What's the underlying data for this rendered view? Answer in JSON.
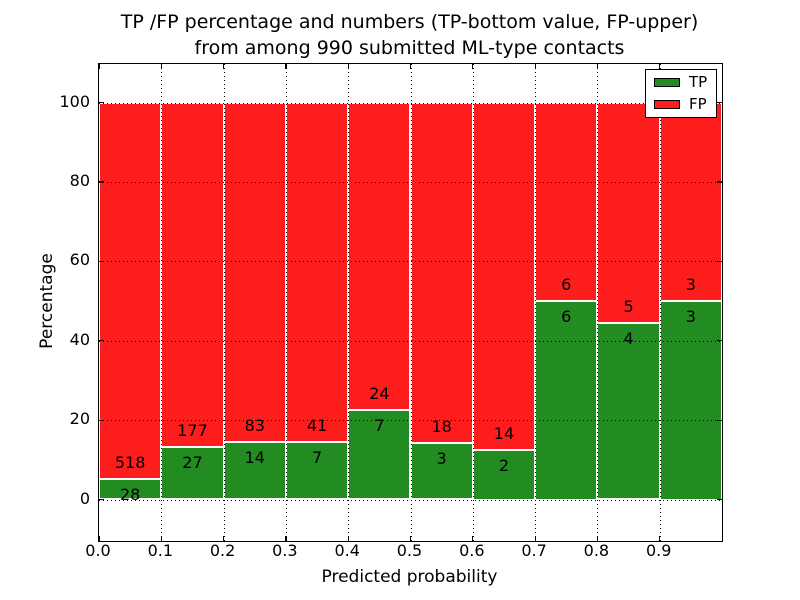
{
  "chart_data": {
    "type": "bar",
    "stacked": true,
    "normalized": "each bar scaled to 100%",
    "title_lines": [
      "TP /FP percentage and numbers (TP-bottom value, FP-upper)",
      "from among 990 submitted ML-type contacts"
    ],
    "xlabel": "Predicted probability",
    "ylabel": "Percentage",
    "categories": [
      "0.0-0.1",
      "0.1-0.2",
      "0.2-0.3",
      "0.3-0.4",
      "0.4-0.5",
      "0.5-0.6",
      "0.6-0.7",
      "0.7-0.8",
      "0.8-0.9",
      "0.9-1.0"
    ],
    "series": [
      {
        "name": "TP",
        "color": "#228b22",
        "values": [
          28,
          27,
          14,
          7,
          7,
          3,
          2,
          6,
          4,
          3
        ]
      },
      {
        "name": "FP",
        "color": "#fd1d1d",
        "values": [
          518,
          177,
          83,
          41,
          24,
          18,
          14,
          6,
          5,
          3
        ]
      }
    ],
    "tp_percent_per_bin": [
      5.1,
      13.2,
      14.4,
      14.6,
      22.6,
      14.3,
      12.5,
      50.0,
      44.4,
      50.0
    ],
    "total_contacts": 990,
    "xticks": [
      "0.0",
      "0.1",
      "0.2",
      "0.3",
      "0.4",
      "0.5",
      "0.6",
      "0.7",
      "0.8",
      "0.9"
    ],
    "yticks": [
      "0",
      "20",
      "40",
      "60",
      "80",
      "100"
    ],
    "xlim": [
      0.0,
      1.0
    ],
    "ylim": [
      -10,
      110
    ],
    "grid": "dotted, drawn over bars",
    "legend": {
      "position": "upper right",
      "entries": [
        {
          "label": "TP",
          "color": "#228b22"
        },
        {
          "label": "FP",
          "color": "#fd1d1d"
        }
      ]
    }
  }
}
